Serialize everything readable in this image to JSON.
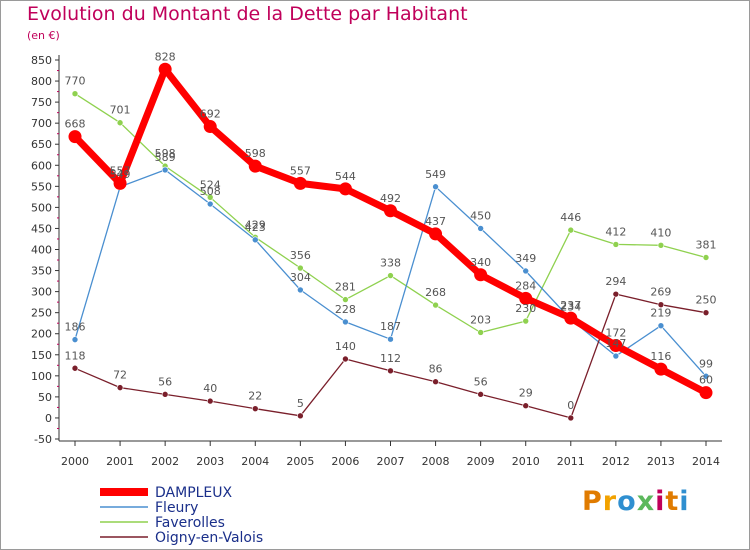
{
  "title": "Evolution du Montant de la Dette par Habitant",
  "subtitle": "(en €)",
  "logo": {
    "text": "Proxiti",
    "colors": [
      "#e07b00",
      "#f2a200",
      "#2f8fd0",
      "#5cb85c",
      "#c0005a",
      "#e07b00",
      "#2f8fd0"
    ]
  },
  "chart_data": {
    "type": "line",
    "x": [
      "2000",
      "2001",
      "2002",
      "2003",
      "2004",
      "2005",
      "2006",
      "2007",
      "2008",
      "2009",
      "2010",
      "2011",
      "2012",
      "2013",
      "2014"
    ],
    "ylim": [
      -50,
      850
    ],
    "yticks": [
      -50,
      0,
      50,
      100,
      150,
      200,
      250,
      300,
      350,
      400,
      450,
      500,
      550,
      600,
      650,
      700,
      750,
      800,
      850
    ],
    "grid": false,
    "legend": "bottom-left",
    "series": [
      {
        "name": "Faverolles",
        "color": "#8fd14f",
        "values": [
          770,
          701,
          598,
          524,
          429,
          356,
          281,
          338,
          268,
          203,
          230,
          446,
          412,
          410,
          381
        ]
      },
      {
        "name": "Fleury",
        "color": "#4a8fd0",
        "values": [
          186,
          549,
          589,
          508,
          423,
          304,
          228,
          187,
          549,
          450,
          349,
          234,
          147,
          219,
          99
        ]
      },
      {
        "name": "Oigny-en-Valois",
        "color": "#7a1f2b",
        "values": [
          118,
          72,
          56,
          40,
          22,
          5,
          140,
          112,
          86,
          56,
          29,
          0,
          294,
          269,
          250
        ]
      },
      {
        "name": "DAMPLEUX",
        "color": "#ff0000",
        "values": [
          668,
          557,
          828,
          692,
          598,
          557,
          544,
          492,
          437,
          340,
          284,
          237,
          172,
          116,
          60
        ]
      }
    ],
    "legend_order": [
      "DAMPLEUX",
      "Fleury",
      "Faverolles",
      "Oigny-en-Valois"
    ]
  }
}
